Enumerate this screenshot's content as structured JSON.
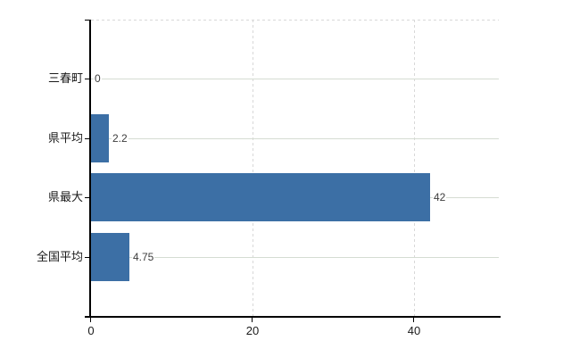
{
  "chart_data": {
    "type": "bar",
    "orientation": "horizontal",
    "title": "",
    "xlabel": "",
    "ylabel": "",
    "categories": [
      "三春町",
      "県平均",
      "県最大",
      "全国平均"
    ],
    "values": [
      0,
      2.2,
      42,
      4.75
    ],
    "value_labels": [
      "0",
      "2.2",
      "42",
      "4.75"
    ],
    "xticks": [
      0,
      20,
      40
    ],
    "xtick_labels": [
      "0",
      "20",
      "40"
    ],
    "xlim": [
      0,
      50.5
    ],
    "grid": true,
    "legend": false,
    "colors": {
      "bar": "#3c6fa5",
      "h_gridline": "#d5dcd2",
      "v_gridline": "#d8d8d8",
      "axis": "#000000",
      "category_label": "#1a1a1a",
      "tick_label": "#1a1a1a",
      "value_label": "#3d3d3d",
      "background": "#ffffff"
    }
  }
}
